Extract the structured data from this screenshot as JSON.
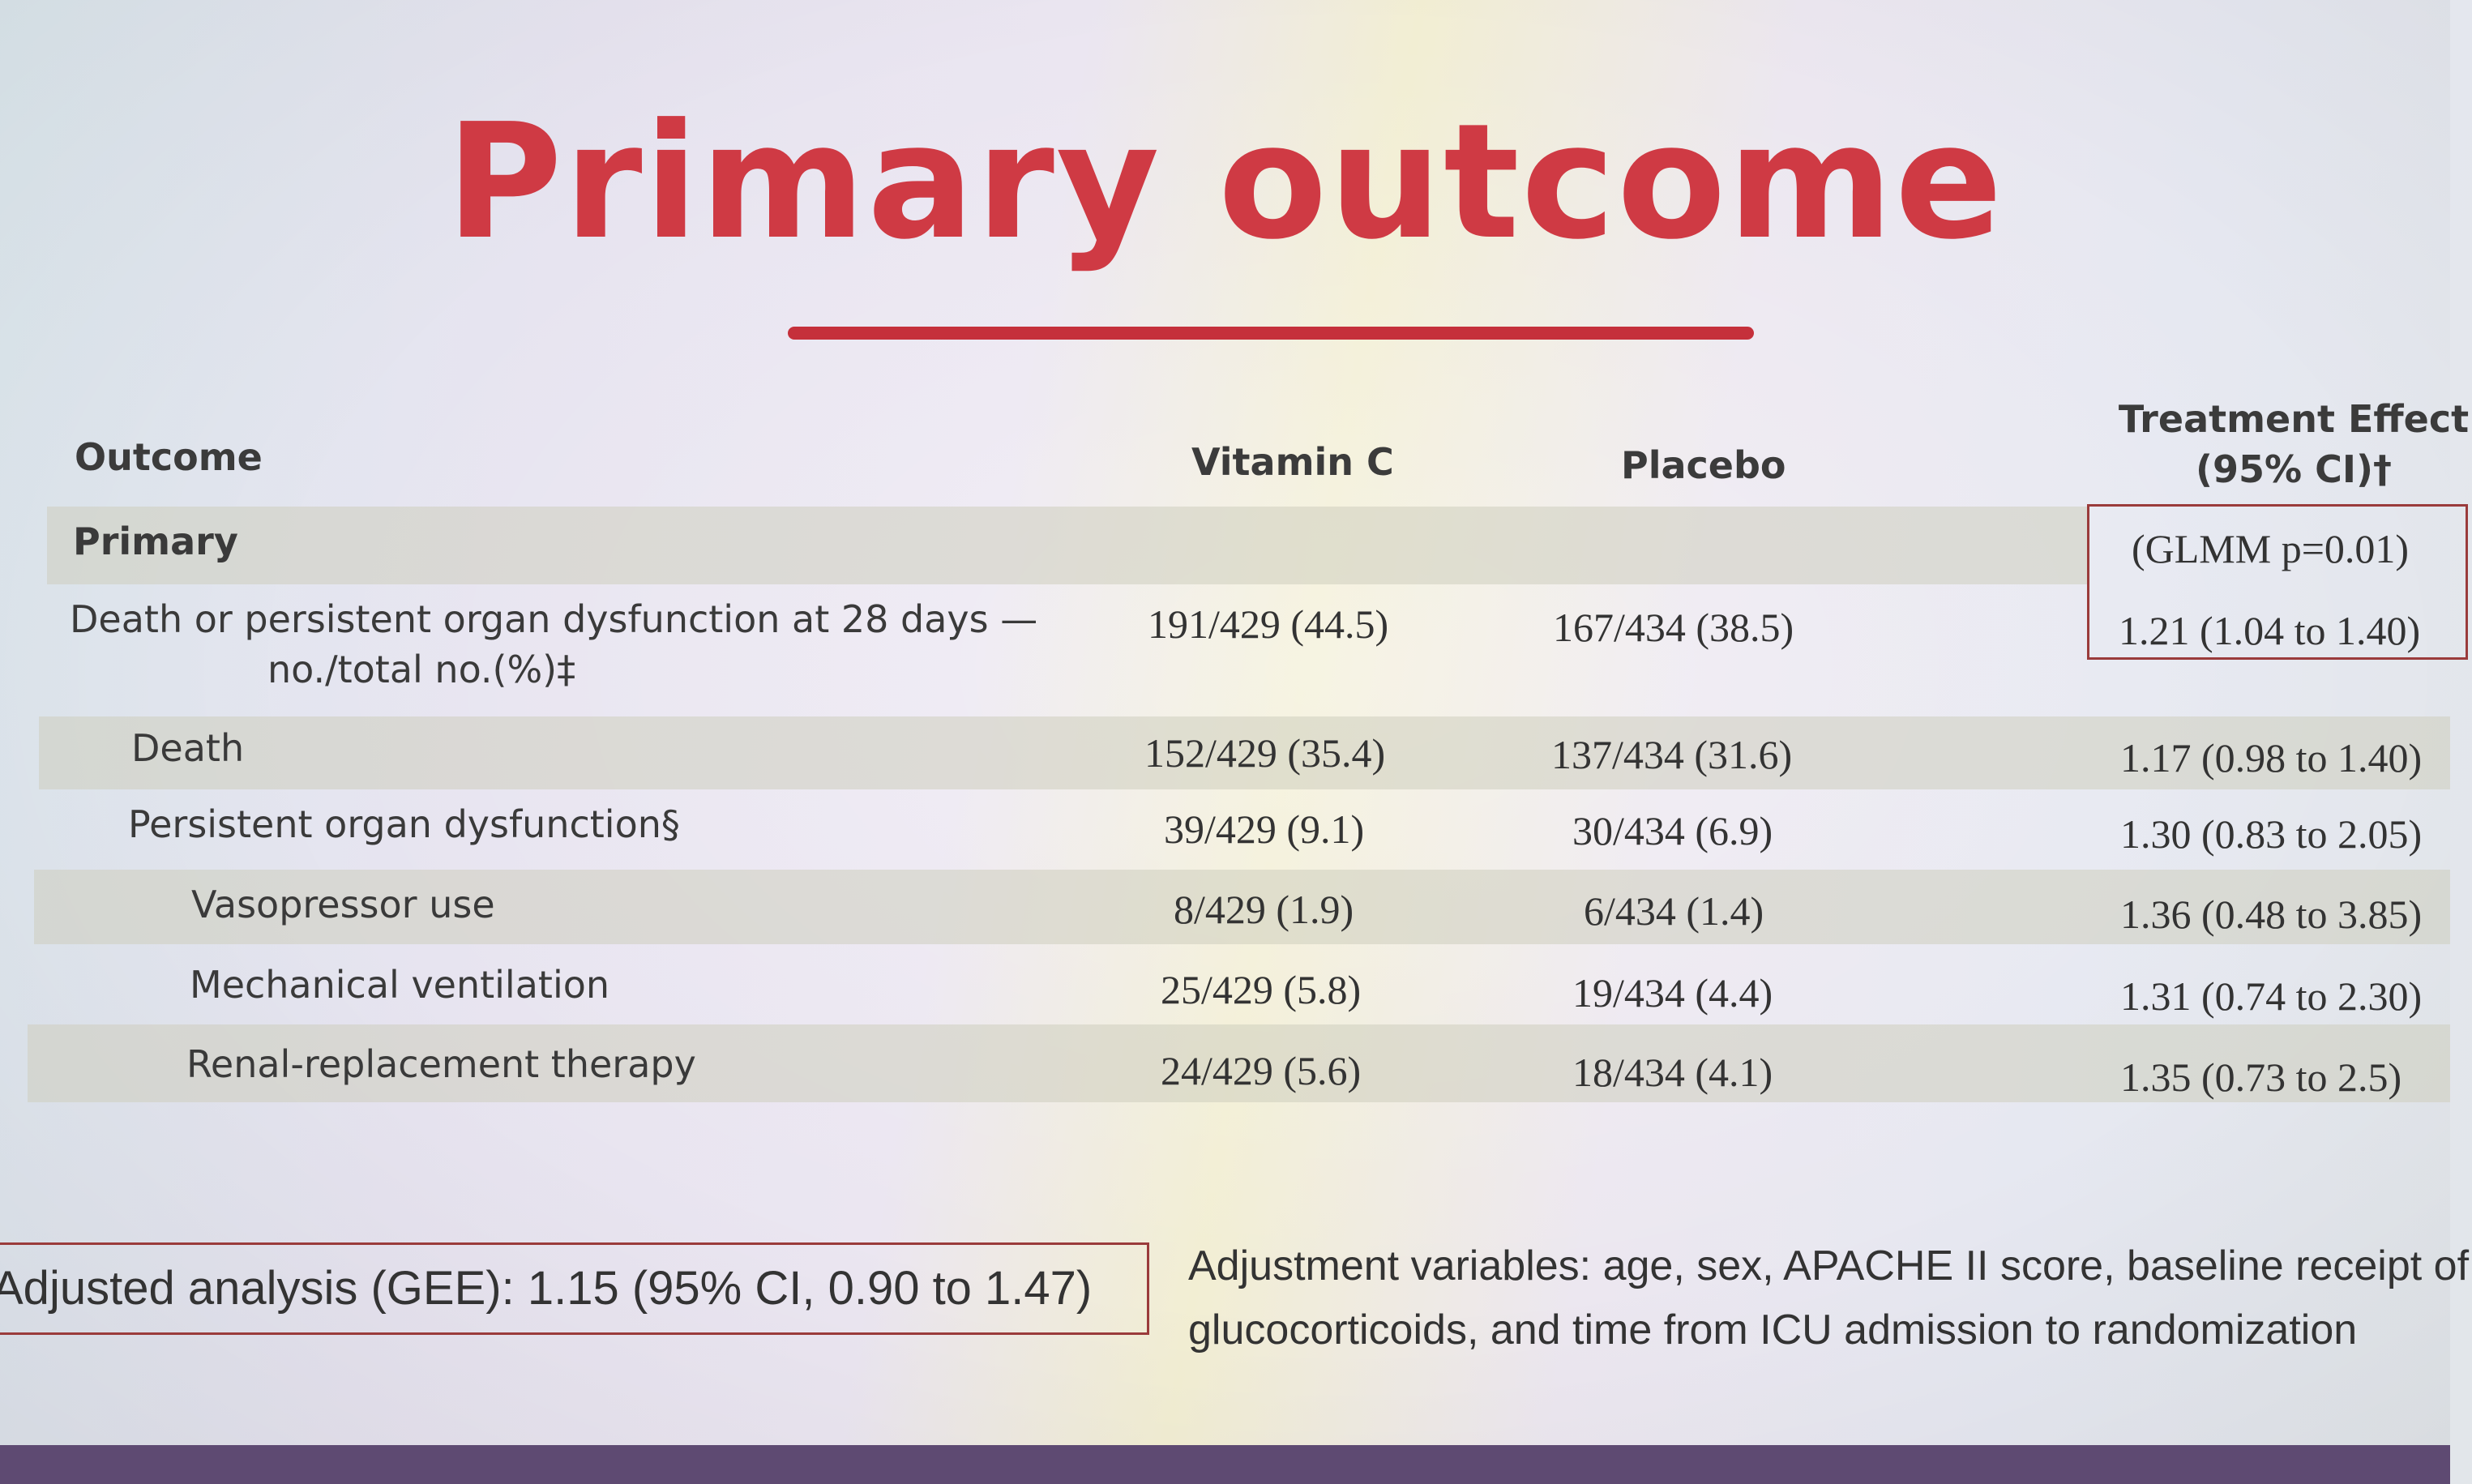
{
  "slide": {
    "title": "Primary outcome"
  },
  "table": {
    "headers": {
      "outcome": "Outcome",
      "vitamin_c": "Vitamin C",
      "placebo": "Placebo",
      "treatment_effect_line1": "Treatment Effect",
      "treatment_effect_line2": "(95% CI)†"
    },
    "section_label": "Primary",
    "glmm_note": "(GLMM p=0.01)",
    "rows": [
      {
        "label_line1": "Death or persistent organ dysfunction at 28 days —",
        "label_line2": "no./total no.(%)‡",
        "vitamin_c": "191/429 (44.5)",
        "placebo": "167/434 (38.5)",
        "effect": "1.21 (1.04 to 1.40)"
      },
      {
        "label": "Death",
        "vitamin_c": "152/429 (35.4)",
        "placebo": "137/434 (31.6)",
        "effect": "1.17 (0.98 to 1.40)"
      },
      {
        "label": "Persistent organ dysfunction§",
        "vitamin_c": "39/429 (9.1)",
        "placebo": "30/434 (6.9)",
        "effect": "1.30 (0.83 to 2.05)"
      },
      {
        "label": "Vasopressor use",
        "vitamin_c": "8/429 (1.9)",
        "placebo": "6/434 (1.4)",
        "effect": "1.36 (0.48 to 3.85)"
      },
      {
        "label": "Mechanical ventilation",
        "vitamin_c": "25/429 (5.8)",
        "placebo": "19/434 (4.4)",
        "effect": "1.31 (0.74 to 2.30)"
      },
      {
        "label": "Renal-replacement therapy",
        "vitamin_c": "24/429 (5.6)",
        "placebo": "18/434 (4.1)",
        "effect": "1.35 (0.73 to 2.5)"
      }
    ]
  },
  "footer": {
    "adjusted_analysis": "Adjusted analysis (GEE): 1.15 (95% CI, 0.90 to 1.47)",
    "adjustment_line1": "Adjustment variables: age, sex, APACHE II score, baseline receipt of",
    "adjustment_line2": "glucocorticoids, and time from ICU admission to randomization"
  },
  "colors": {
    "title": "#cf3a44",
    "rule": "#c5303b",
    "box_border": "#9a3b3b",
    "band": "#cdcdbe",
    "bottom_strip": "#5e4a72"
  }
}
